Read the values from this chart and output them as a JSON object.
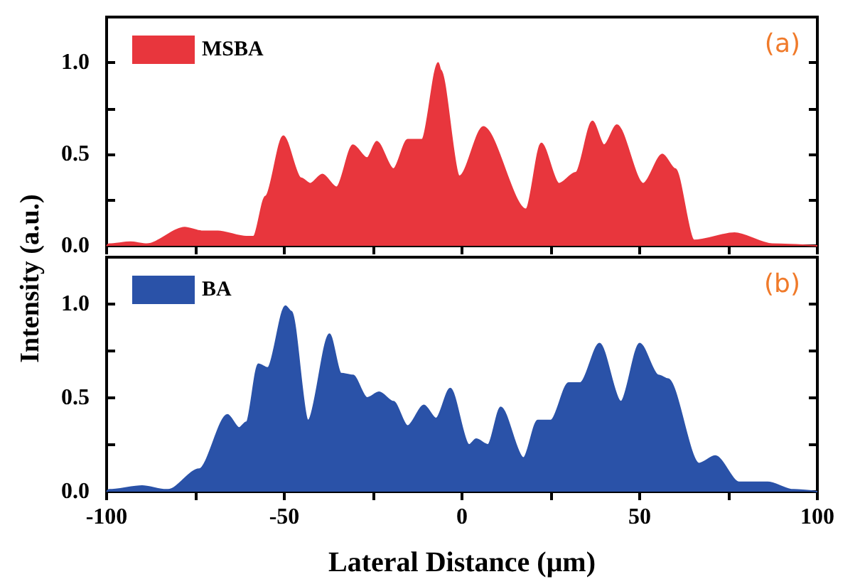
{
  "chart_data": [
    {
      "type": "area",
      "ylabel": "Intensity (a.u.)",
      "annotations": [
        "(a)"
      ],
      "legend": "top left",
      "tick_labels": "y",
      "x": [
        -100,
        -99.3,
        -93.3,
        -88.7,
        -78,
        -73.3,
        -68.7,
        -60.7,
        -58.7,
        -55.3,
        -50.3,
        -45.3,
        -42.7,
        -39.3,
        -35.3,
        -30.7,
        -26.7,
        -24,
        -19.3,
        -15.3,
        -11.3,
        -6.7,
        -6,
        -0.7,
        6,
        18,
        22.3,
        27.3,
        32,
        36.7,
        40,
        43.6,
        51,
        56.4,
        60,
        65.3,
        76.7,
        87.3,
        100
      ],
      "series": [
        {
          "name": "MSBA",
          "color": "#e8363d",
          "values": [
            0,
            0.01,
            0.02,
            0.01,
            0.1,
            0.08,
            0.08,
            0.05,
            0.05,
            0.27,
            0.6,
            0.37,
            0.34,
            0.39,
            0.32,
            0.55,
            0.48,
            0.57,
            0.42,
            0.58,
            0.58,
            1.0,
            0.96,
            0.38,
            0.65,
            0.2,
            0.56,
            0.34,
            0.4,
            0.68,
            0.55,
            0.66,
            0.34,
            0.5,
            0.42,
            0.03,
            0.07,
            0.01,
            0
          ]
        }
      ],
      "xlim": [
        -100,
        100
      ],
      "xticks": [
        -100,
        {
          "value": -75,
          "label": null
        },
        -50,
        {
          "value": -25,
          "label": null
        },
        0,
        {
          "value": 25,
          "label": null
        },
        50,
        {
          "value": 75,
          "label": null
        },
        100
      ],
      "ylim": [
        0,
        1.25
      ],
      "yticks": [
        {
          "value": 0,
          "label": "0.0"
        },
        {
          "value": 0.25,
          "label": null
        },
        {
          "value": 0.5,
          "label": "0.5"
        },
        {
          "value": 0.75,
          "label": null
        },
        {
          "value": 1,
          "label": "1.0"
        }
      ],
      "grid": false
    },
    {
      "type": "area",
      "xlabel": "Lateral Distance (μm)",
      "annotations": [
        "(b)"
      ],
      "legend": "top left",
      "x": [
        -100,
        -99.3,
        -90,
        -83.3,
        -82.7,
        -74,
        -66,
        -62.7,
        -60.7,
        -57.3,
        -54.7,
        -49.7,
        -48,
        -43.3,
        -37.3,
        -34,
        -30.7,
        -26.7,
        -23.3,
        -19.3,
        -15.3,
        -10.7,
        -7.3,
        -3.3,
        2,
        4,
        7.3,
        10.9,
        17.3,
        21.3,
        25,
        30,
        33.3,
        38.7,
        44.7,
        50,
        55.3,
        58,
        66.7,
        71.3,
        78,
        86,
        93.3,
        100
      ],
      "series": [
        {
          "name": "BA",
          "color": "#2a52a8",
          "values": [
            0,
            0.01,
            0.03,
            0.01,
            0.01,
            0.12,
            0.41,
            0.34,
            0.37,
            0.68,
            0.66,
            0.99,
            0.96,
            0.38,
            0.84,
            0.63,
            0.62,
            0.5,
            0.53,
            0.48,
            0.35,
            0.46,
            0.39,
            0.55,
            0.25,
            0.28,
            0.25,
            0.45,
            0.18,
            0.38,
            0.38,
            0.58,
            0.58,
            0.79,
            0.48,
            0.79,
            0.62,
            0.6,
            0.15,
            0.19,
            0.05,
            0.05,
            0.01,
            0
          ]
        }
      ],
      "xlim": [
        -100,
        100
      ],
      "xticks": [
        -100,
        {
          "value": -75,
          "label": null
        },
        -50,
        {
          "value": -25,
          "label": null
        },
        0,
        {
          "value": 25,
          "label": null
        },
        50,
        {
          "value": 75,
          "label": null
        },
        100
      ],
      "ylim": [
        0,
        1.25
      ],
      "yticks": [
        {
          "value": 0,
          "label": "0.0"
        },
        {
          "value": 0.25,
          "label": null
        },
        {
          "value": 0.5,
          "label": "0.5"
        },
        {
          "value": 0.75,
          "label": null
        },
        {
          "value": 1,
          "label": "1.0"
        }
      ],
      "grid": false
    }
  ]
}
